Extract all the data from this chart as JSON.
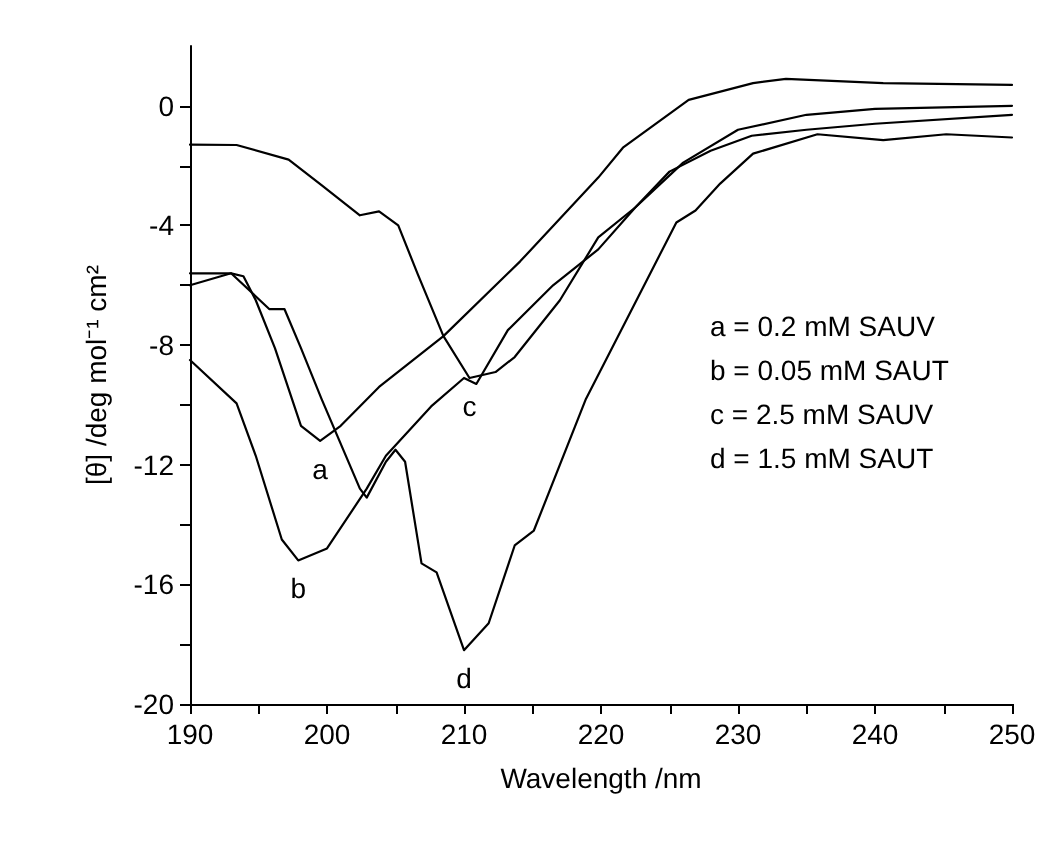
{
  "chart_data": {
    "type": "line",
    "xlabel": "Wavelength /nm",
    "ylabel": "[θ] /deg mol⁻¹ cm²",
    "xlim": [
      190,
      250
    ],
    "ylim": [
      -20,
      2
    ],
    "xticks": [
      190,
      {
        "value": 195,
        "label": null
      },
      200,
      {
        "value": 205,
        "label": null
      },
      210,
      {
        "value": 215,
        "label": null
      },
      220,
      {
        "value": 225,
        "label": null
      },
      230,
      {
        "value": 235,
        "label": null
      },
      240,
      {
        "value": 245,
        "label": null
      },
      250
    ],
    "yticks": [
      -20,
      {
        "value": -18,
        "label": null
      },
      -16,
      {
        "value": -14,
        "label": null
      },
      -12,
      {
        "value": -10,
        "label": null
      },
      -8,
      {
        "value": -6,
        "label": null
      },
      -4,
      {
        "value": -2,
        "label": null
      },
      0
    ],
    "grid": false,
    "legend": false,
    "marker": "none",
    "line_style": "solid",
    "series": [
      {
        "name": "a",
        "color": "#000000",
        "x": [
          190,
          193,
          193.9,
          194.8,
          196.2,
          198.1,
          199.5,
          201,
          203.8,
          208.5,
          214.1,
          219.8,
          221.6,
          226.4,
          231.1,
          233.5,
          240.6,
          250
        ],
        "values": [
          -6.0,
          -5.6,
          -5.7,
          -6.5,
          -8.1,
          -10.7,
          -11.2,
          -10.7,
          -9.4,
          -7.7,
          -5.2,
          -2.4,
          -1.4,
          0.2,
          0.76,
          0.9,
          0.76,
          0.7
        ]
      },
      {
        "name": "b",
        "color": "#000000",
        "x": [
          190,
          193.4,
          194.8,
          196.7,
          197.9,
          200,
          202.9,
          204.3,
          207.6,
          210,
          210.9,
          213.2,
          216.5,
          219.8,
          222.5,
          225,
          228,
          231,
          235,
          240,
          250
        ],
        "values": [
          -8.5,
          -9.95,
          -11.7,
          -14.5,
          -15.2,
          -14.8,
          -12.8,
          -11.7,
          -10.05,
          -9.1,
          -9.3,
          -7.5,
          -6.0,
          -4.8,
          -3.4,
          -2.2,
          -1.5,
          -1.0,
          -0.8,
          -0.6,
          -0.3
        ]
      },
      {
        "name": "c",
        "color": "#000000",
        "x": [
          190,
          193.4,
          197.2,
          199.6,
          202.4,
          203.8,
          205.2,
          206.6,
          208.5,
          210.4,
          212.3,
          213.7,
          217,
          219.8,
          222.5,
          226,
          230,
          235,
          240,
          250
        ],
        "values": [
          -1.3,
          -1.31,
          -1.8,
          -2.65,
          -3.66,
          -3.53,
          -4.0,
          -5.6,
          -7.7,
          -9.1,
          -8.9,
          -8.4,
          -6.5,
          -4.4,
          -3.4,
          -1.9,
          -0.8,
          -0.3,
          -0.1,
          0
        ]
      },
      {
        "name": "d",
        "color": "#000000",
        "x": [
          190,
          193,
          195.8,
          196.9,
          198.1,
          199.6,
          202.4,
          202.9,
          204.3,
          205,
          205.7,
          206.9,
          208,
          210,
          211.8,
          213.7,
          215.1,
          218.9,
          225.5,
          226.9,
          228.7,
          231.1,
          235.8,
          240.6,
          245.2,
          250
        ],
        "values": [
          -5.6,
          -5.6,
          -6.8,
          -6.8,
          -8.1,
          -9.8,
          -12.8,
          -13.1,
          -11.9,
          -11.5,
          -11.9,
          -15.3,
          -15.6,
          -18.2,
          -17.3,
          -14.7,
          -14.2,
          -9.8,
          -3.9,
          -3.5,
          -2.6,
          -1.6,
          -0.95,
          -1.15,
          -0.95,
          -1.06
        ]
      }
    ],
    "annotations": [
      "a = 0.2 mM SAUV",
      "b = 0.05 mM SAUT",
      "c = 2.5 mM SAUV",
      "d = 1.5 mM SAUT"
    ]
  }
}
